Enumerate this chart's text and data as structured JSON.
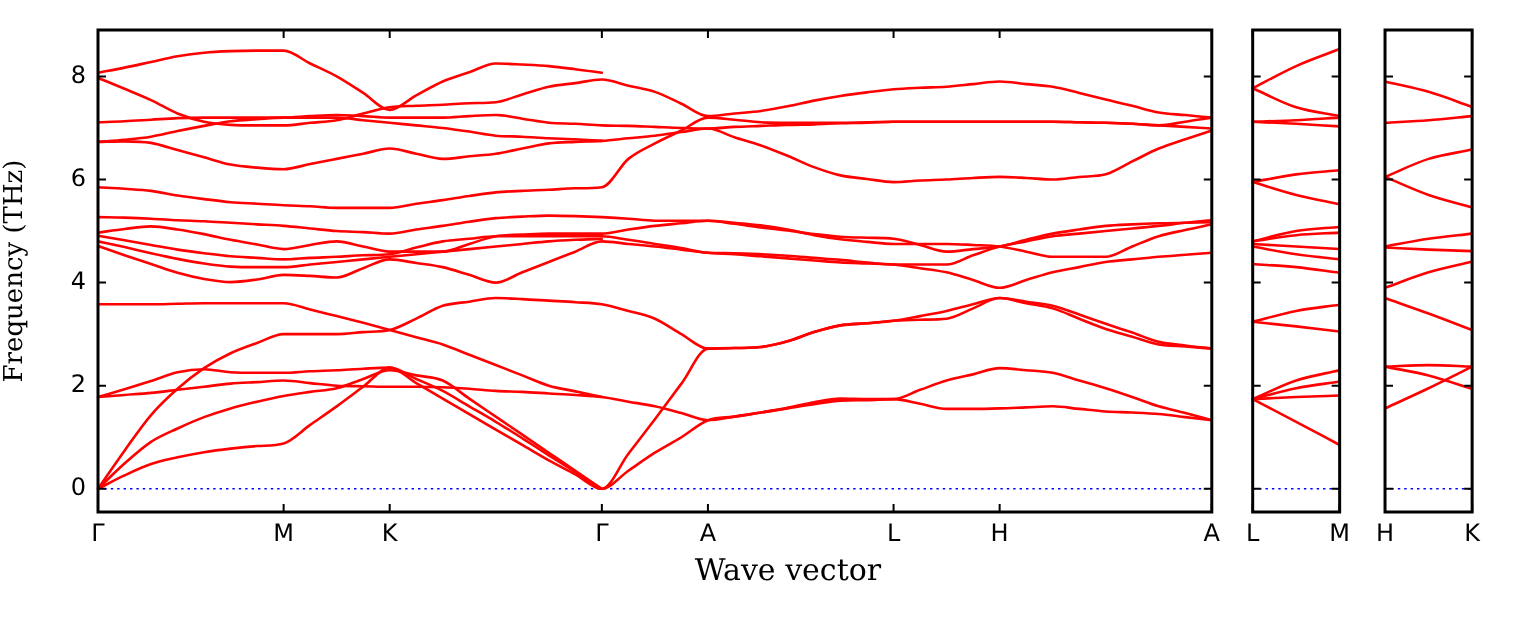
{
  "chart_data": [
    {
      "type": "line",
      "xlabel": "Wave vector",
      "ylabel": "Frequency (THz)",
      "ylim": [
        -0.45,
        8.9
      ],
      "yticks": [
        0,
        2,
        4,
        6,
        8
      ],
      "categories": [
        "Γ",
        null,
        null,
        null,
        null,
        null,
        null,
        "M",
        null,
        null,
        null,
        "K",
        null,
        null,
        null,
        null,
        null,
        null,
        null,
        "Γ",
        null,
        null,
        null,
        "A",
        null,
        null,
        null,
        null,
        null,
        null,
        "L",
        null,
        null,
        null,
        "H",
        null,
        null,
        null,
        null,
        null,
        null,
        null,
        "A"
      ],
      "grid": false,
      "legend": false,
      "ref_lines": [
        {
          "axis": "y",
          "value": 0,
          "color": "#0000ff",
          "line_style": "dotted"
        }
      ],
      "series": [
        {
          "color": "#ff0000",
          "values": [
            0,
            0.26,
            0.48,
            0.61,
            0.71,
            0.78,
            0.83,
            0.88,
            1.24,
            1.6,
            1.98,
            2.35,
            2.05,
            1.75,
            1.45,
            1.15,
            0.85,
            0.55,
            0.28,
            0,
            0.35,
            0.7,
            1.0,
            1.33,
            1.4,
            1.48,
            1.56,
            1.64,
            1.71,
            1.72,
            1.74,
            1.65,
            1.55,
            1.55,
            1.56,
            1.58,
            1.6,
            1.55,
            1.5,
            1.48,
            1.45,
            1.39,
            1.33
          ]
        },
        {
          "color": "#ff0000",
          "values": [
            0,
            0.49,
            0.91,
            1.17,
            1.39,
            1.56,
            1.69,
            1.8,
            1.88,
            1.95,
            2.13,
            2.3,
            2.2,
            2.1,
            1.75,
            1.4,
            1.05,
            0.7,
            0.35,
            0,
            null,
            null,
            null,
            null,
            null,
            null,
            null,
            null,
            null,
            null,
            null,
            null,
            null,
            null,
            null,
            null,
            null,
            null,
            null,
            null,
            null,
            null,
            null
          ]
        },
        {
          "color": "#ff0000",
          "values": [
            0,
            0.74,
            1.43,
            1.94,
            2.34,
            2.63,
            2.83,
            3.0,
            3.0,
            3.0,
            3.04,
            3.08,
            3.3,
            3.55,
            3.63,
            3.7,
            3.68,
            3.65,
            3.62,
            3.58,
            3.45,
            3.3,
            3.0,
            2.72,
            2.73,
            2.75,
            2.86,
            3.04,
            3.17,
            3.21,
            3.26,
            3.35,
            3.45,
            3.58,
            3.7,
            3.63,
            3.55,
            3.38,
            3.2,
            3.03,
            2.85,
            2.78,
            2.72
          ]
        },
        {
          "color": "#ff0000",
          "values": [
            1.78,
            1.82,
            1.86,
            1.92,
            1.98,
            2.04,
            2.07,
            2.1,
            2.05,
            2.0,
            1.99,
            1.98,
            1.98,
            1.97,
            1.94,
            1.9,
            1.88,
            1.85,
            1.82,
            1.78,
            1.69,
            1.6,
            1.47,
            1.33,
            1.4,
            1.48,
            1.57,
            1.68,
            1.75,
            1.74,
            1.74,
            1.92,
            2.1,
            2.22,
            2.34,
            2.3,
            2.25,
            2.1,
            1.95,
            1.78,
            1.6,
            1.47,
            1.33
          ]
        },
        {
          "color": "#ff0000",
          "values": [
            1.78,
            1.93,
            2.09,
            2.26,
            2.32,
            2.26,
            2.25,
            2.25,
            2.28,
            2.3,
            2.33,
            2.35,
            2.13,
            1.9,
            1.6,
            1.3,
            0.98,
            0.65,
            0.33,
            0,
            0.68,
            1.35,
            2.04,
            2.72,
            2.73,
            2.75,
            2.86,
            3.04,
            3.17,
            3.21,
            3.26,
            3.28,
            3.3,
            3.5,
            3.7,
            3.6,
            3.5,
            3.3,
            3.1,
            2.95,
            2.8,
            2.76,
            2.72
          ]
        },
        {
          "color": "#ff0000",
          "values": [
            3.58,
            3.58,
            3.58,
            3.59,
            3.6,
            3.6,
            3.6,
            3.6,
            3.48,
            3.35,
            3.22,
            3.08,
            2.94,
            2.8,
            2.6,
            2.4,
            2.2,
            2.0,
            1.89,
            1.78,
            null,
            null,
            null,
            null,
            null,
            null,
            null,
            null,
            null,
            null,
            null,
            null,
            null,
            null,
            null,
            null,
            null,
            null,
            null,
            null,
            null,
            null,
            null
          ]
        },
        {
          "color": "#ff0000",
          "values": [
            4.71,
            4.53,
            4.36,
            4.19,
            4.07,
            4.01,
            4.06,
            4.15,
            4.13,
            4.1,
            4.28,
            4.45,
            4.38,
            4.3,
            4.15,
            4.0,
            4.2,
            4.4,
            4.6,
            4.8,
            4.75,
            4.7,
            4.64,
            4.58,
            4.55,
            4.51,
            4.47,
            4.43,
            4.39,
            4.37,
            4.35,
            4.28,
            4.2,
            4.05,
            3.9,
            4.05,
            4.2,
            4.3,
            4.4,
            4.45,
            4.5,
            4.54,
            4.58
          ]
        },
        {
          "color": "#ff0000",
          "values": [
            4.8,
            4.69,
            4.57,
            4.46,
            4.37,
            4.31,
            4.3,
            4.3,
            4.35,
            4.4,
            4.45,
            4.5,
            4.55,
            4.6,
            4.65,
            4.7,
            4.75,
            4.8,
            4.83,
            4.85,
            null,
            null,
            null,
            null,
            null,
            null,
            null,
            null,
            null,
            null,
            null,
            null,
            null,
            null,
            null,
            null,
            null,
            null,
            null,
            null,
            null,
            null,
            null
          ]
        },
        {
          "color": "#ff0000",
          "values": [
            4.91,
            4.82,
            4.73,
            4.64,
            4.57,
            4.51,
            4.48,
            4.45,
            4.48,
            4.5,
            4.53,
            4.55,
            4.68,
            4.8,
            4.85,
            4.9,
            4.9,
            4.9,
            4.9,
            4.9,
            4.83,
            4.75,
            4.67,
            4.58,
            4.57,
            4.55,
            4.52,
            4.48,
            4.44,
            4.39,
            4.35,
            4.35,
            4.35,
            4.53,
            4.7,
            4.8,
            4.9,
            4.95,
            5.0,
            5.05,
            5.1,
            5.16,
            5.21
          ]
        },
        {
          "color": "#ff0000",
          "values": [
            4.97,
            5.04,
            5.09,
            5.03,
            4.94,
            4.83,
            4.74,
            4.65,
            4.73,
            4.8,
            4.7,
            4.6,
            4.6,
            4.6,
            4.75,
            4.9,
            4.93,
            4.95,
            4.95,
            4.95,
            5.03,
            5.1,
            5.15,
            5.2,
            5.16,
            5.11,
            5.03,
            4.92,
            4.84,
            4.79,
            4.75,
            4.75,
            4.75,
            4.73,
            4.7,
            4.6,
            4.5,
            4.5,
            4.5,
            4.7,
            4.9,
            5.02,
            5.13
          ]
        },
        {
          "color": "#ff0000",
          "values": [
            5.27,
            5.26,
            5.24,
            5.21,
            5.19,
            5.16,
            5.13,
            5.1,
            5.05,
            5.0,
            4.98,
            4.95,
            5.03,
            5.1,
            5.18,
            5.25,
            5.28,
            5.3,
            5.29,
            5.27,
            5.24,
            5.2,
            5.2,
            5.2,
            5.14,
            5.07,
            5.01,
            4.94,
            4.89,
            4.87,
            4.85,
            4.73,
            4.6,
            4.65,
            4.7,
            4.83,
            4.95,
            5.03,
            5.1,
            5.13,
            5.15,
            5.16,
            5.17
          ]
        },
        {
          "color": "#ff0000",
          "values": [
            5.85,
            5.82,
            5.78,
            5.69,
            5.62,
            5.56,
            5.53,
            5.5,
            5.48,
            5.45,
            5.45,
            5.45,
            5.53,
            5.6,
            5.68,
            5.75,
            5.78,
            5.8,
            5.83,
            5.85,
            6.4,
            6.7,
            6.95,
            7.2,
            7.16,
            7.11,
            7.1,
            7.1,
            7.1,
            7.11,
            7.12,
            7.12,
            7.12,
            7.12,
            7.12,
            7.12,
            7.12,
            7.11,
            7.1,
            7.08,
            7.05,
            7.02,
            6.99
          ]
        },
        {
          "color": "#ff0000",
          "values": [
            6.73,
            6.74,
            6.71,
            6.57,
            6.43,
            6.29,
            6.23,
            6.2,
            6.3,
            6.4,
            6.5,
            6.6,
            6.5,
            6.4,
            6.45,
            6.5,
            6.6,
            6.7,
            6.73,
            6.75,
            6.8,
            6.85,
            6.92,
            6.99,
            6.82,
            6.66,
            6.46,
            6.24,
            6.08,
            6.01,
            5.95,
            5.98,
            6.0,
            6.03,
            6.05,
            6.03,
            6.0,
            6.05,
            6.1,
            6.35,
            6.6,
            6.78,
            6.95
          ]
        },
        {
          "color": "#ff0000",
          "values": [
            6.73,
            6.77,
            6.83,
            6.94,
            7.04,
            7.13,
            7.17,
            7.2,
            7.2,
            7.2,
            7.15,
            7.1,
            7.05,
            7.0,
            6.93,
            6.85,
            6.83,
            6.8,
            6.78,
            6.75,
            null,
            null,
            null,
            null,
            null,
            null,
            null,
            null,
            null,
            null,
            null,
            null,
            null,
            null,
            null,
            null,
            null,
            null,
            null,
            null,
            null,
            null,
            null
          ]
        },
        {
          "color": "#ff0000",
          "values": [
            7.11,
            7.13,
            7.16,
            7.19,
            7.2,
            7.2,
            7.2,
            7.2,
            7.23,
            7.25,
            7.23,
            7.2,
            7.2,
            7.2,
            7.23,
            7.25,
            7.18,
            7.1,
            7.08,
            7.05,
            7.04,
            7.02,
            7.0,
            6.99,
            7.02,
            7.04,
            7.06,
            7.07,
            7.09,
            7.1,
            7.12,
            7.12,
            7.12,
            7.12,
            7.12,
            7.12,
            7.12,
            7.11,
            7.1,
            7.08,
            7.05,
            7.12,
            7.2
          ]
        },
        {
          "color": "#ff0000",
          "values": [
            7.97,
            7.76,
            7.54,
            7.28,
            7.12,
            7.06,
            7.05,
            7.05,
            7.1,
            7.15,
            7.28,
            7.4,
            7.43,
            7.45,
            7.48,
            7.5,
            7.65,
            7.8,
            7.87,
            7.94,
            7.82,
            7.7,
            7.47,
            7.23,
            7.28,
            7.33,
            7.42,
            7.53,
            7.62,
            7.69,
            7.75,
            7.78,
            7.8,
            7.85,
            7.9,
            7.85,
            7.8,
            7.68,
            7.55,
            7.43,
            7.3,
            7.25,
            7.2
          ]
        },
        {
          "color": "#ff0000",
          "values": [
            8.07,
            8.17,
            8.28,
            8.39,
            8.46,
            8.49,
            8.5,
            8.5,
            8.25,
            8.0,
            7.68,
            7.35,
            7.63,
            7.9,
            8.08,
            8.25,
            8.23,
            8.2,
            8.14,
            8.07,
            null,
            null,
            null,
            null,
            null,
            null,
            null,
            null,
            null,
            null,
            null,
            null,
            null,
            null,
            null,
            null,
            null,
            null,
            null,
            null,
            null,
            null,
            null
          ]
        }
      ]
    },
    {
      "type": "line",
      "ylim": [
        -0.45,
        8.9
      ],
      "yticks": [
        0,
        2,
        4,
        6,
        8
      ],
      "tick_labels": "x",
      "categories": [
        "L",
        null,
        "M"
      ],
      "grid": false,
      "legend": false,
      "ref_lines": [
        {
          "axis": "y",
          "value": 0,
          "color": "#0000ff",
          "line_style": "dotted"
        }
      ],
      "series": [
        {
          "color": "#ff0000",
          "values": [
            7.77,
            8.2,
            8.53
          ]
        },
        {
          "color": "#ff0000",
          "values": [
            7.77,
            7.4,
            7.23
          ]
        },
        {
          "color": "#ff0000",
          "values": [
            7.12,
            7.15,
            7.2
          ]
        },
        {
          "color": "#ff0000",
          "values": [
            7.12,
            7.08,
            7.03
          ]
        },
        {
          "color": "#ff0000",
          "values": [
            5.95,
            6.1,
            6.18
          ]
        },
        {
          "color": "#ff0000",
          "values": [
            5.95,
            5.7,
            5.52
          ]
        },
        {
          "color": "#ff0000",
          "values": [
            4.8,
            5.0,
            5.08
          ]
        },
        {
          "color": "#ff0000",
          "values": [
            4.8,
            4.92,
            4.97
          ]
        },
        {
          "color": "#ff0000",
          "values": [
            4.75,
            4.7,
            4.65
          ]
        },
        {
          "color": "#ff0000",
          "values": [
            4.7,
            4.55,
            4.45
          ]
        },
        {
          "color": "#ff0000",
          "values": [
            4.36,
            4.3,
            4.19
          ]
        },
        {
          "color": "#ff0000",
          "values": [
            3.24,
            3.45,
            3.57
          ]
        },
        {
          "color": "#ff0000",
          "values": [
            3.24,
            3.15,
            3.05
          ]
        },
        {
          "color": "#ff0000",
          "values": [
            1.74,
            2.1,
            2.3
          ]
        },
        {
          "color": "#ff0000",
          "values": [
            1.74,
            1.95,
            2.08
          ]
        },
        {
          "color": "#ff0000",
          "values": [
            1.74,
            1.78,
            1.81
          ]
        },
        {
          "color": "#ff0000",
          "values": [
            1.74,
            1.3,
            0.85
          ]
        }
      ]
    },
    {
      "type": "line",
      "ylim": [
        -0.45,
        8.9
      ],
      "yticks": [
        0,
        2,
        4,
        6,
        8
      ],
      "tick_labels": "x",
      "categories": [
        "H",
        null,
        "K"
      ],
      "grid": false,
      "legend": false,
      "ref_lines": [
        {
          "axis": "y",
          "value": 0,
          "color": "#0000ff",
          "line_style": "dotted"
        }
      ],
      "series": [
        {
          "color": "#ff0000",
          "values": [
            7.9,
            7.7,
            7.41
          ]
        },
        {
          "color": "#ff0000",
          "values": [
            7.1,
            7.15,
            7.23
          ]
        },
        {
          "color": "#ff0000",
          "values": [
            6.05,
            6.4,
            6.58
          ]
        },
        {
          "color": "#ff0000",
          "values": [
            6.05,
            5.7,
            5.46
          ]
        },
        {
          "color": "#ff0000",
          "values": [
            4.7,
            4.85,
            4.95
          ]
        },
        {
          "color": "#ff0000",
          "values": [
            4.68,
            4.64,
            4.61
          ]
        },
        {
          "color": "#ff0000",
          "values": [
            3.9,
            4.2,
            4.41
          ]
        },
        {
          "color": "#ff0000",
          "values": [
            3.7,
            3.4,
            3.08
          ]
        },
        {
          "color": "#ff0000",
          "values": [
            2.37,
            2.4,
            2.37
          ]
        },
        {
          "color": "#ff0000",
          "values": [
            2.37,
            2.2,
            1.94
          ]
        },
        {
          "color": "#ff0000",
          "values": [
            1.56,
            1.95,
            2.37
          ]
        }
      ]
    }
  ]
}
